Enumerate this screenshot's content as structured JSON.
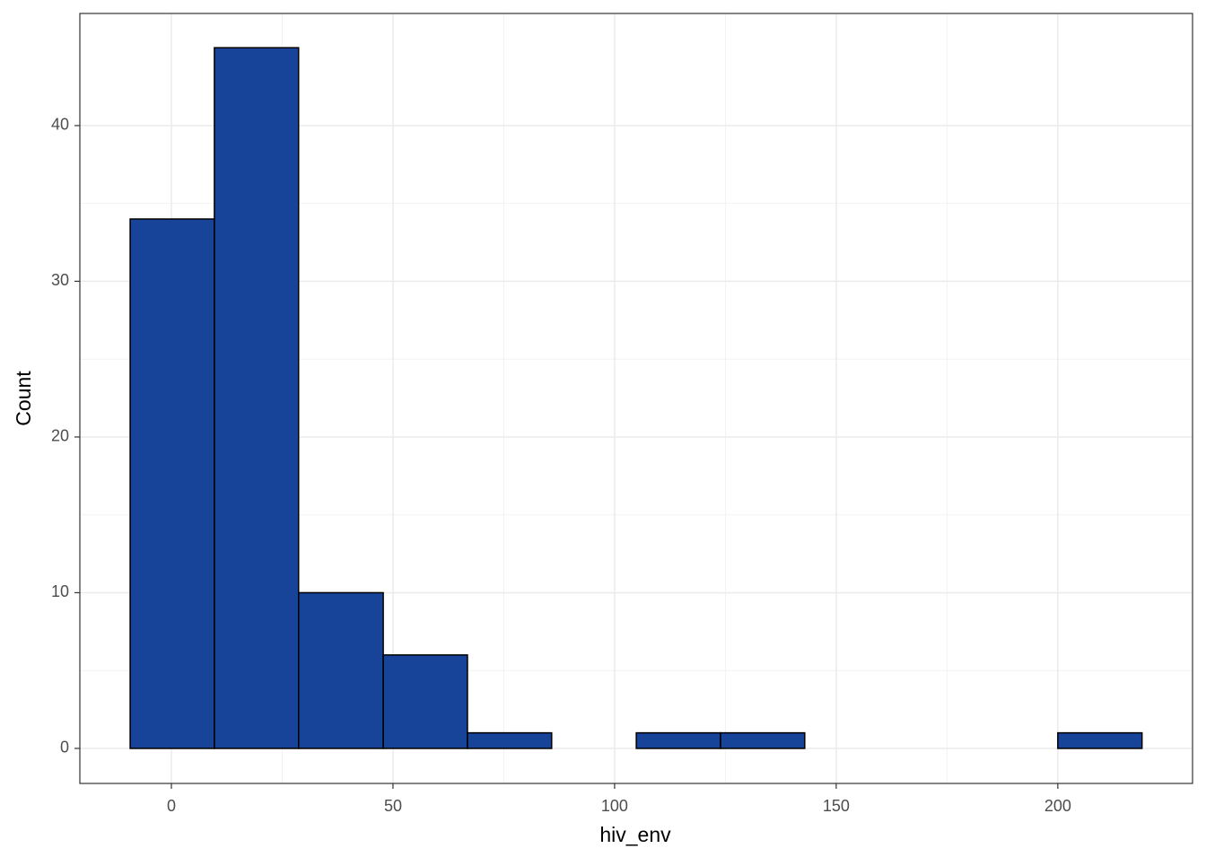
{
  "chart_data": {
    "type": "histogram",
    "x_label": "hiv_env",
    "y_label": "Count",
    "bins": [
      -9.3,
      9.7,
      28.7,
      47.8,
      66.8,
      85.8,
      104.9,
      123.9,
      142.9,
      162.0,
      181.0,
      200.0,
      219.0
    ],
    "values": [
      34,
      45,
      10,
      6,
      1,
      0,
      1,
      1,
      0,
      0,
      0,
      1
    ],
    "color": "#174499",
    "edge_color": "#000000",
    "xlim": [
      -20.65,
      230.4
    ],
    "ylim": [
      -2.25,
      47.2
    ],
    "xticks": [
      0,
      50,
      100,
      150,
      200
    ],
    "yticks": [
      0,
      10,
      20,
      30,
      40
    ],
    "grid": true
  }
}
